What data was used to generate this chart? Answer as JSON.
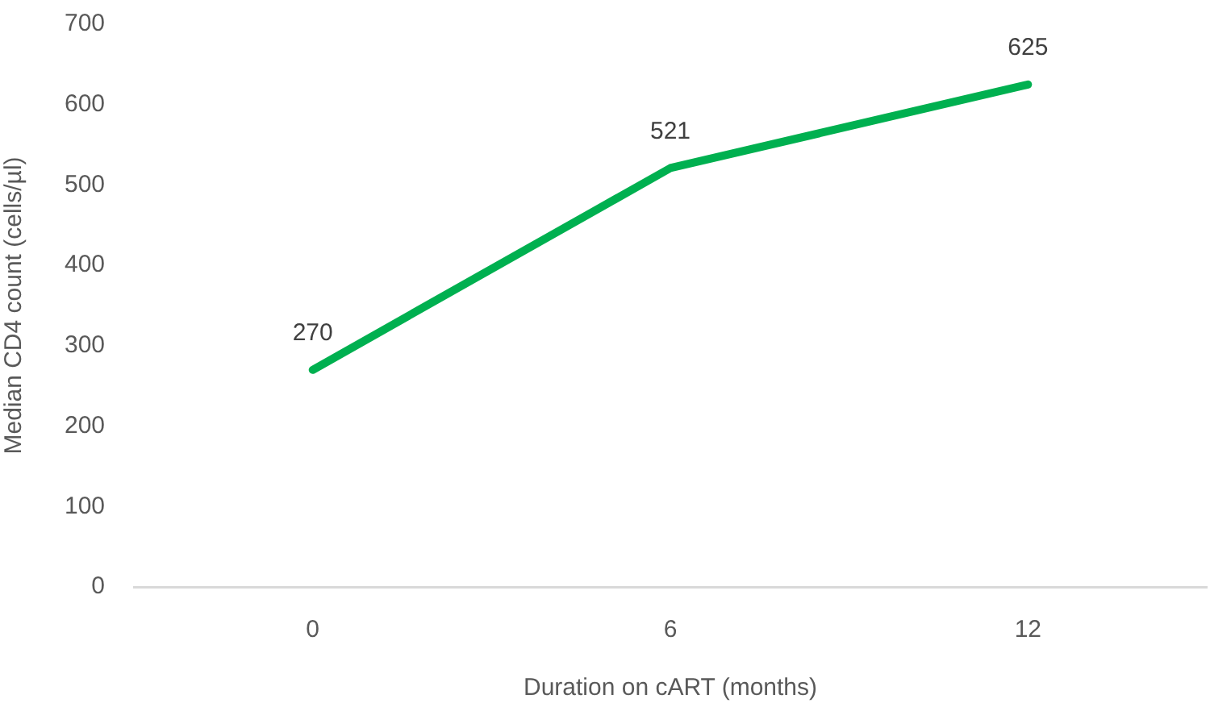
{
  "chart_data": {
    "type": "line",
    "xlabel": "Duration on cART (months)",
    "ylabel": "Median CD4 count (cells/µl)",
    "categories": [
      "0",
      "6",
      "12"
    ],
    "series": [
      {
        "color": "#00b050",
        "values": [
          270,
          521,
          625
        ]
      }
    ],
    "ylim": [
      0,
      700
    ],
    "yticks": [
      0,
      100,
      200,
      300,
      400,
      500,
      600,
      700
    ],
    "data_labels": true,
    "grid": false,
    "legend": false,
    "marker": "none",
    "line_style": "solid"
  }
}
